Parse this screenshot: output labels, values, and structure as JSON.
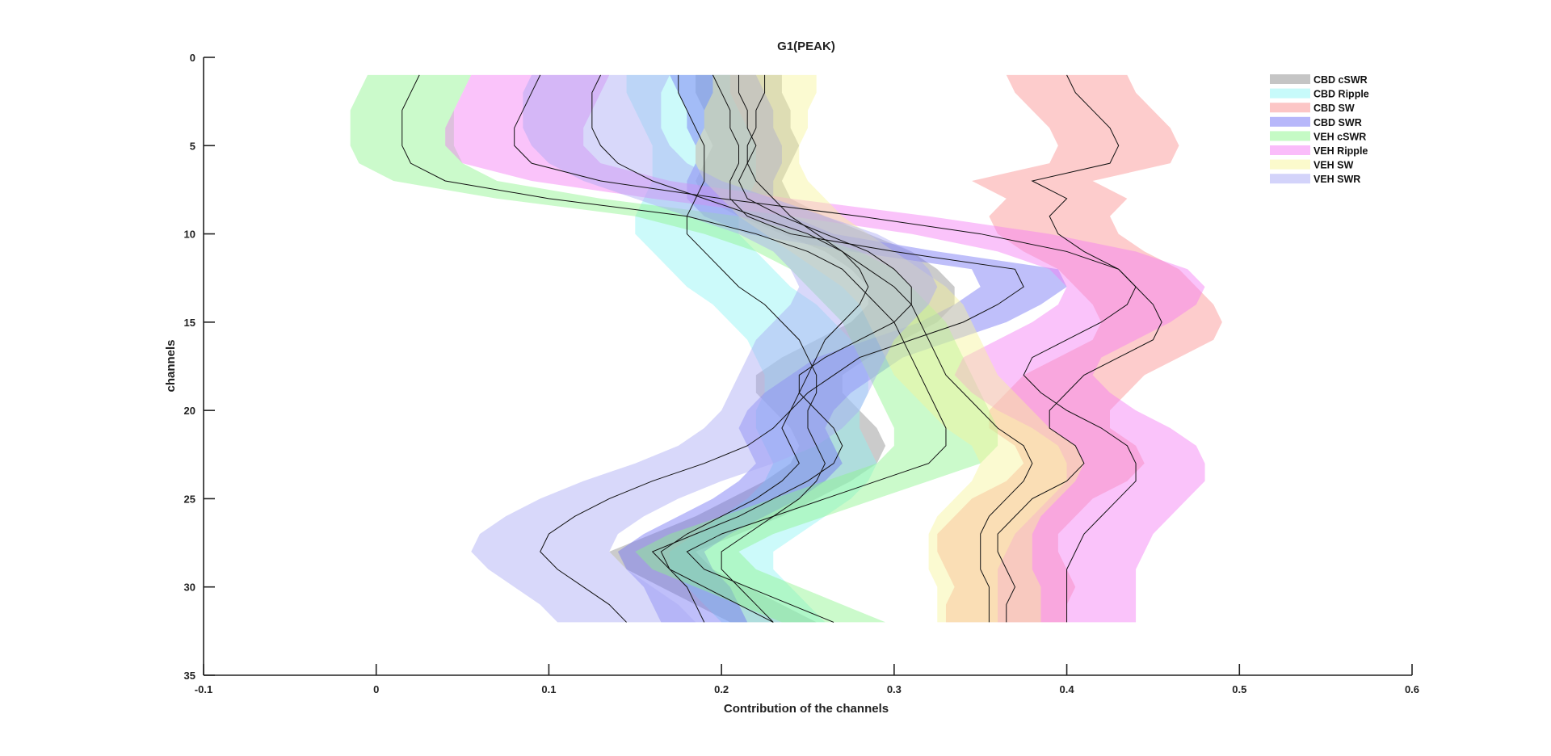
{
  "chart_data": {
    "type": "area",
    "title": "G1(PEAK)",
    "xlabel": "Contribution of the channels",
    "ylabel": "channels",
    "xlim": [
      -0.1,
      0.6
    ],
    "ylim": [
      0,
      35
    ],
    "y_reversed": true,
    "x_ticks": [
      "-0.1",
      "0",
      "0.1",
      "0.2",
      "0.3",
      "0.4",
      "0.5",
      "0.6"
    ],
    "y_ticks": [
      "0",
      "5",
      "10",
      "15",
      "20",
      "25",
      "30",
      "35"
    ],
    "grid": false,
    "legend_position": "top-right",
    "channels": [
      1,
      2,
      3,
      4,
      5,
      6,
      7,
      8,
      9,
      10,
      11,
      12,
      13,
      14,
      15,
      16,
      17,
      18,
      19,
      20,
      21,
      22,
      23,
      24,
      25,
      26,
      27,
      28,
      29,
      30,
      31,
      32
    ],
    "series": [
      {
        "name": "CBD cSWR",
        "color": "#8c8c8c",
        "mean": [
          0.21,
          0.21,
          0.215,
          0.215,
          0.22,
          0.215,
          0.21,
          0.215,
          0.235,
          0.26,
          0.285,
          0.3,
          0.31,
          0.31,
          0.3,
          0.28,
          0.26,
          0.245,
          0.245,
          0.255,
          0.265,
          0.27,
          0.265,
          0.25,
          0.23,
          0.21,
          0.185,
          0.16,
          0.17,
          0.19,
          0.21,
          0.23
        ],
        "half_width": [
          0.025,
          0.025,
          0.025,
          0.025,
          0.025,
          0.025,
          0.025,
          0.025,
          0.025,
          0.025,
          0.025,
          0.025,
          0.025,
          0.025,
          0.025,
          0.025,
          0.025,
          0.025,
          0.025,
          0.025,
          0.025,
          0.025,
          0.025,
          0.025,
          0.025,
          0.025,
          0.025,
          0.025,
          0.025,
          0.025,
          0.025,
          0.025
        ]
      },
      {
        "name": "CBD Ripple",
        "color": "#8ff5f5",
        "mean": [
          0.175,
          0.175,
          0.18,
          0.185,
          0.19,
          0.19,
          0.19,
          0.185,
          0.18,
          0.18,
          0.19,
          0.2,
          0.21,
          0.225,
          0.235,
          0.245,
          0.25,
          0.255,
          0.255,
          0.25,
          0.25,
          0.255,
          0.26,
          0.255,
          0.245,
          0.23,
          0.215,
          0.2,
          0.2,
          0.21,
          0.22,
          0.23
        ],
        "half_width": [
          0.03,
          0.03,
          0.03,
          0.03,
          0.03,
          0.03,
          0.03,
          0.03,
          0.03,
          0.03,
          0.03,
          0.03,
          0.03,
          0.03,
          0.03,
          0.03,
          0.03,
          0.03,
          0.03,
          0.03,
          0.03,
          0.03,
          0.03,
          0.03,
          0.03,
          0.03,
          0.03,
          0.03,
          0.03,
          0.03,
          0.03,
          0.03
        ]
      },
      {
        "name": "CBD SW",
        "color": "#fa8e8e",
        "mean": [
          0.4,
          0.405,
          0.415,
          0.425,
          0.43,
          0.425,
          0.38,
          0.4,
          0.39,
          0.395,
          0.41,
          0.43,
          0.44,
          0.45,
          0.455,
          0.45,
          0.43,
          0.41,
          0.4,
          0.39,
          0.39,
          0.405,
          0.41,
          0.4,
          0.38,
          0.37,
          0.36,
          0.36,
          0.365,
          0.37,
          0.365,
          0.365
        ],
        "half_width": [
          0.035,
          0.035,
          0.035,
          0.035,
          0.035,
          0.035,
          0.035,
          0.035,
          0.035,
          0.035,
          0.035,
          0.035,
          0.035,
          0.035,
          0.035,
          0.035,
          0.035,
          0.035,
          0.035,
          0.035,
          0.035,
          0.035,
          0.035,
          0.035,
          0.035,
          0.035,
          0.035,
          0.035,
          0.035,
          0.035,
          0.035,
          0.035
        ]
      },
      {
        "name": "CBD SWR",
        "color": "#7070f5",
        "mean": [
          0.195,
          0.2,
          0.205,
          0.205,
          0.21,
          0.21,
          0.205,
          0.205,
          0.215,
          0.24,
          0.3,
          0.37,
          0.375,
          0.36,
          0.34,
          0.31,
          0.28,
          0.265,
          0.25,
          0.24,
          0.235,
          0.24,
          0.245,
          0.235,
          0.22,
          0.2,
          0.18,
          0.165,
          0.17,
          0.18,
          0.185,
          0.19
        ],
        "half_width": [
          0.025,
          0.025,
          0.025,
          0.025,
          0.025,
          0.025,
          0.025,
          0.025,
          0.025,
          0.025,
          0.025,
          0.025,
          0.025,
          0.025,
          0.025,
          0.025,
          0.025,
          0.025,
          0.025,
          0.025,
          0.025,
          0.025,
          0.025,
          0.025,
          0.025,
          0.025,
          0.025,
          0.025,
          0.025,
          0.025,
          0.025,
          0.025
        ]
      },
      {
        "name": "VEH cSWR",
        "color": "#8cf58c",
        "mean": [
          0.025,
          0.02,
          0.015,
          0.015,
          0.015,
          0.02,
          0.04,
          0.1,
          0.18,
          0.22,
          0.25,
          0.27,
          0.28,
          0.29,
          0.3,
          0.305,
          0.31,
          0.315,
          0.32,
          0.325,
          0.33,
          0.33,
          0.32,
          0.29,
          0.26,
          0.23,
          0.2,
          0.18,
          0.19,
          0.215,
          0.24,
          0.265
        ],
        "half_width": [
          0.03,
          0.03,
          0.03,
          0.03,
          0.03,
          0.03,
          0.03,
          0.03,
          0.03,
          0.03,
          0.03,
          0.03,
          0.03,
          0.03,
          0.03,
          0.03,
          0.03,
          0.03,
          0.03,
          0.03,
          0.03,
          0.03,
          0.03,
          0.03,
          0.03,
          0.03,
          0.03,
          0.03,
          0.03,
          0.03,
          0.03,
          0.03
        ]
      },
      {
        "name": "VEH Ripple",
        "color": "#f57af5",
        "mean": [
          0.095,
          0.09,
          0.085,
          0.08,
          0.08,
          0.09,
          0.13,
          0.2,
          0.28,
          0.35,
          0.4,
          0.43,
          0.44,
          0.435,
          0.42,
          0.4,
          0.38,
          0.375,
          0.385,
          0.4,
          0.42,
          0.435,
          0.44,
          0.44,
          0.43,
          0.42,
          0.41,
          0.405,
          0.4,
          0.4,
          0.4,
          0.4
        ],
        "half_width": [
          0.04,
          0.04,
          0.04,
          0.04,
          0.04,
          0.04,
          0.04,
          0.04,
          0.04,
          0.04,
          0.04,
          0.04,
          0.04,
          0.04,
          0.04,
          0.04,
          0.04,
          0.04,
          0.04,
          0.04,
          0.04,
          0.04,
          0.04,
          0.04,
          0.04,
          0.04,
          0.04,
          0.04,
          0.04,
          0.04,
          0.04,
          0.04
        ]
      },
      {
        "name": "VEH SW",
        "color": "#f7f59a",
        "mean": [
          0.225,
          0.225,
          0.22,
          0.22,
          0.215,
          0.215,
          0.22,
          0.23,
          0.24,
          0.255,
          0.27,
          0.285,
          0.3,
          0.31,
          0.315,
          0.32,
          0.325,
          0.33,
          0.34,
          0.35,
          0.36,
          0.375,
          0.38,
          0.375,
          0.365,
          0.355,
          0.35,
          0.35,
          0.35,
          0.355,
          0.355,
          0.355
        ],
        "half_width": [
          0.03,
          0.03,
          0.03,
          0.03,
          0.03,
          0.03,
          0.03,
          0.03,
          0.03,
          0.03,
          0.03,
          0.03,
          0.03,
          0.03,
          0.03,
          0.03,
          0.03,
          0.03,
          0.03,
          0.03,
          0.03,
          0.03,
          0.03,
          0.03,
          0.03,
          0.03,
          0.03,
          0.03,
          0.03,
          0.03,
          0.03,
          0.03
        ]
      },
      {
        "name": "VEH SWR",
        "color": "#a8a8f5",
        "mean": [
          0.13,
          0.125,
          0.125,
          0.125,
          0.13,
          0.14,
          0.16,
          0.19,
          0.22,
          0.25,
          0.27,
          0.28,
          0.285,
          0.28,
          0.27,
          0.26,
          0.255,
          0.25,
          0.245,
          0.24,
          0.23,
          0.215,
          0.19,
          0.16,
          0.135,
          0.115,
          0.1,
          0.095,
          0.105,
          0.12,
          0.135,
          0.145
        ],
        "half_width": [
          0.04,
          0.04,
          0.04,
          0.04,
          0.04,
          0.04,
          0.04,
          0.04,
          0.04,
          0.04,
          0.04,
          0.04,
          0.04,
          0.04,
          0.04,
          0.04,
          0.04,
          0.04,
          0.04,
          0.04,
          0.04,
          0.04,
          0.04,
          0.04,
          0.04,
          0.04,
          0.04,
          0.04,
          0.04,
          0.04,
          0.04,
          0.04
        ]
      }
    ]
  }
}
